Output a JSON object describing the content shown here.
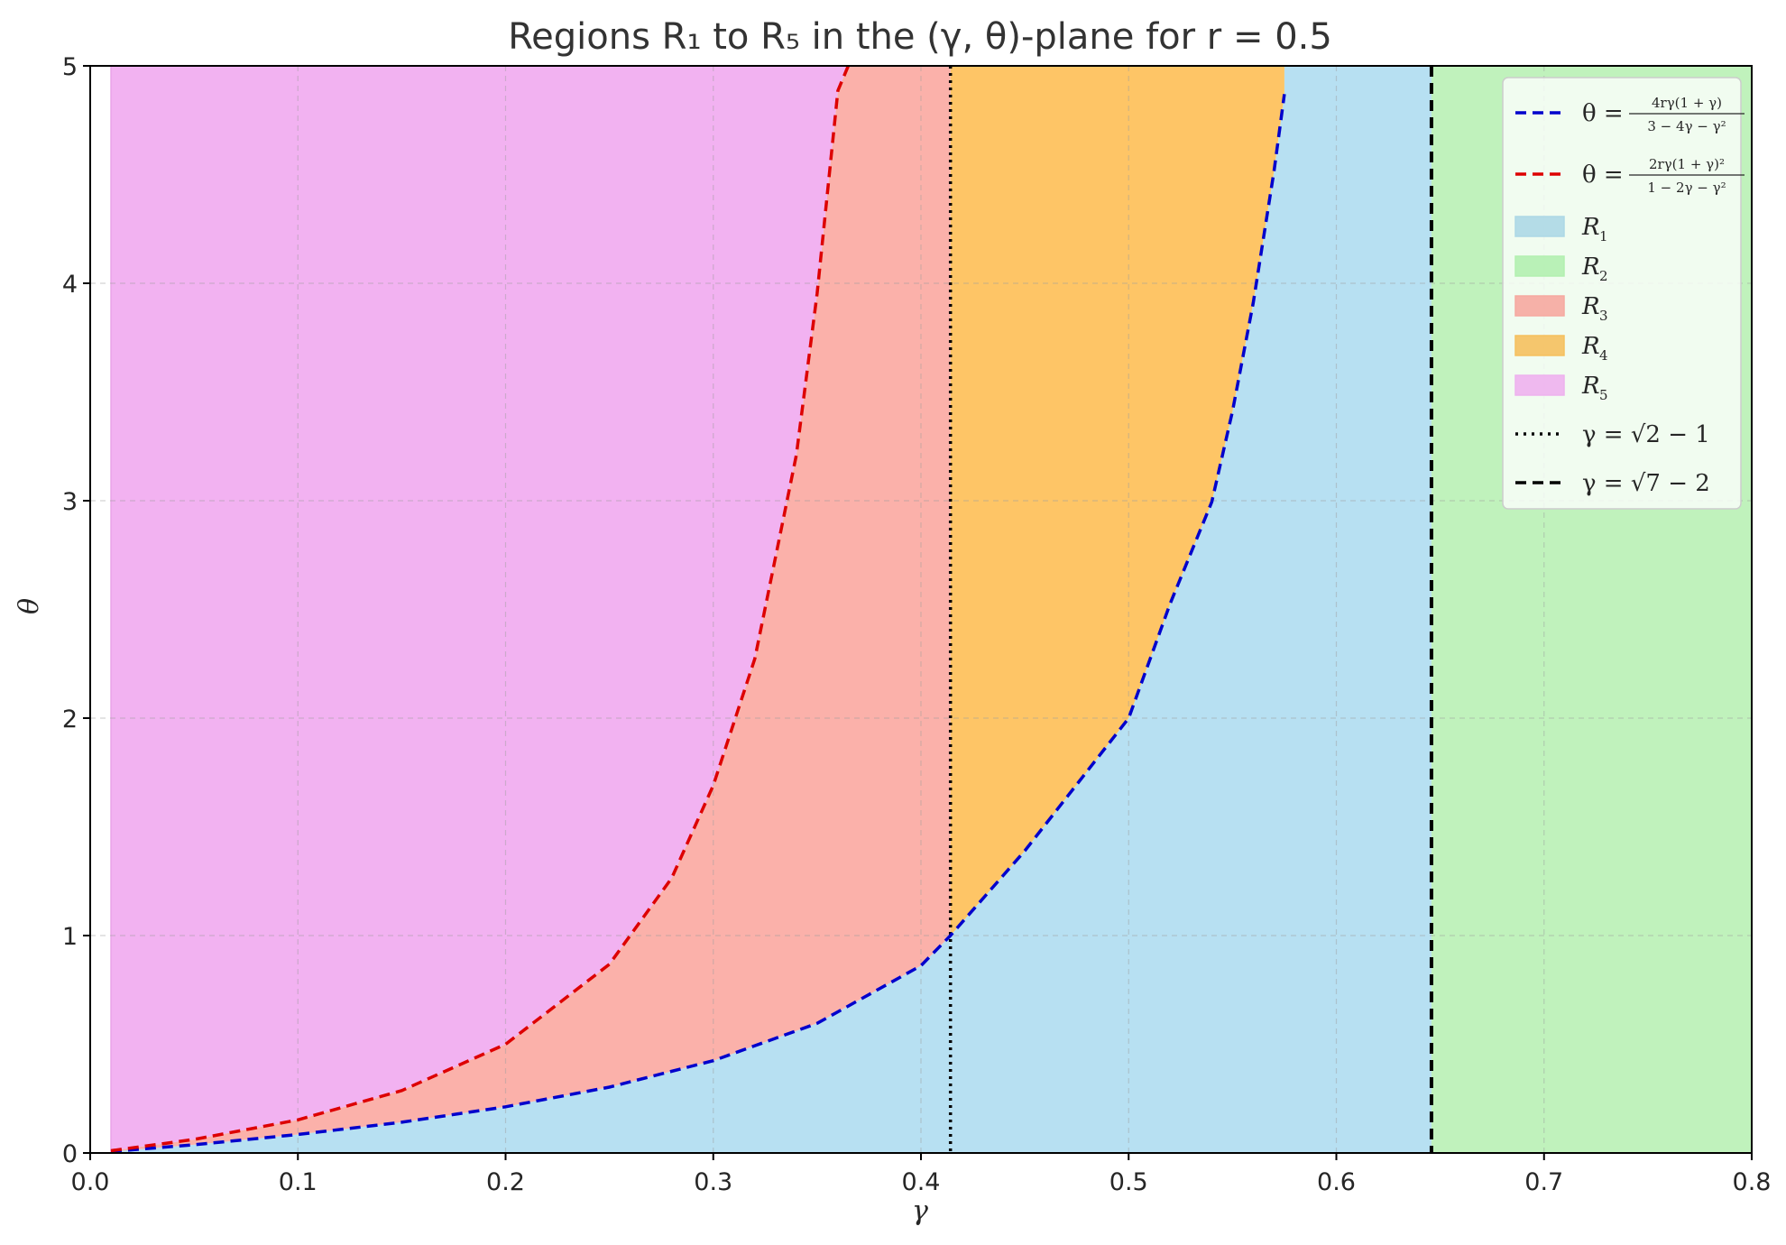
{
  "chart_data": {
    "type": "area",
    "title": "Regions R₁ to R₅ in the (γ, θ)-plane for r = 0.5",
    "xlabel": "γ",
    "ylabel": "θ",
    "xlim": [
      0.0,
      0.8
    ],
    "ylim": [
      0,
      5
    ],
    "x_ticks": [
      "0.0",
      "0.1",
      "0.2",
      "0.3",
      "0.4",
      "0.5",
      "0.6",
      "0.7",
      "0.8"
    ],
    "y_ticks": [
      "0",
      "1",
      "2",
      "3",
      "4",
      "5"
    ],
    "grid": true,
    "legend_position": "top-right",
    "r": 0.5,
    "curves": [
      {
        "name": "θ = 4rγ(1+γ) / (3 − 4γ − γ²)",
        "color": "#0000cc",
        "style": "dashed",
        "x": [
          0.01,
          0.05,
          0.1,
          0.15,
          0.2,
          0.25,
          0.3,
          0.35,
          0.4,
          0.4142,
          0.45,
          0.5,
          0.52,
          0.54,
          0.55,
          0.56,
          0.57,
          0.575
        ],
        "y": [
          0.0068,
          0.0379,
          0.0849,
          0.1417,
          0.2123,
          0.3029,
          0.4243,
          0.5962,
          0.8615,
          0.9998,
          1.3896,
          2.0,
          2.5269,
          2.9942,
          3.4121,
          3.9106,
          4.5152,
          4.8702
        ]
      },
      {
        "name": "θ = 2rγ(1+γ)² / (1 − 2γ − γ²)",
        "color": "#dd0000",
        "style": "dashed",
        "x": [
          0.01,
          0.05,
          0.1,
          0.15,
          0.2,
          0.25,
          0.28,
          0.3,
          0.32,
          0.34,
          0.35,
          0.36,
          0.365
        ],
        "y": [
          0.0104,
          0.0622,
          0.1524,
          0.2872,
          0.5,
          0.8681,
          1.2649,
          1.6901,
          2.2731,
          3.2112,
          3.9537,
          4.8858,
          5.0
        ]
      }
    ],
    "vertical_lines": [
      {
        "name": "γ = √2 − 1",
        "x": 0.4142,
        "color": "#000000",
        "style": "dotted"
      },
      {
        "name": "γ = √7 − 2",
        "x": 0.6458,
        "color": "#000000",
        "style": "dashed"
      }
    ],
    "regions": [
      {
        "name": "R₁",
        "color": "#b7e0f2",
        "legend_color": "#add8e6"
      },
      {
        "name": "R₂",
        "color": "#c0f2bc",
        "legend_color": "#b3f0b0"
      },
      {
        "name": "R₃",
        "color": "#fbb1aa",
        "legend_color": "#f6a9a0"
      },
      {
        "name": "R₄",
        "color": "#fec566",
        "legend_color": "#f5c05e"
      },
      {
        "name": "R₅",
        "color": "#f2b2f1",
        "legend_color": "#eeb1ee"
      }
    ],
    "legend": [
      {
        "kind": "line",
        "color": "#0000cc",
        "style": "dashed",
        "prefix": "θ =",
        "num": "4rγ(1 + γ)",
        "den": "3 − 4γ − γ²"
      },
      {
        "kind": "line",
        "color": "#dd0000",
        "style": "dashed",
        "prefix": "θ =",
        "num": "2rγ(1 + γ)²",
        "den": "1 − 2γ − γ²"
      },
      {
        "kind": "patch",
        "region": 0,
        "base": "R",
        "sub": "1"
      },
      {
        "kind": "patch",
        "region": 1,
        "base": "R",
        "sub": "2"
      },
      {
        "kind": "patch",
        "region": 2,
        "base": "R",
        "sub": "3"
      },
      {
        "kind": "patch",
        "region": 3,
        "base": "R",
        "sub": "4"
      },
      {
        "kind": "patch",
        "region": 4,
        "base": "R",
        "sub": "5"
      },
      {
        "kind": "line",
        "color": "#000000",
        "style": "dotted",
        "text": "γ = √2 − 1"
      },
      {
        "kind": "line",
        "color": "#000000",
        "style": "dashed",
        "text": "γ = √7 − 2"
      }
    ]
  }
}
